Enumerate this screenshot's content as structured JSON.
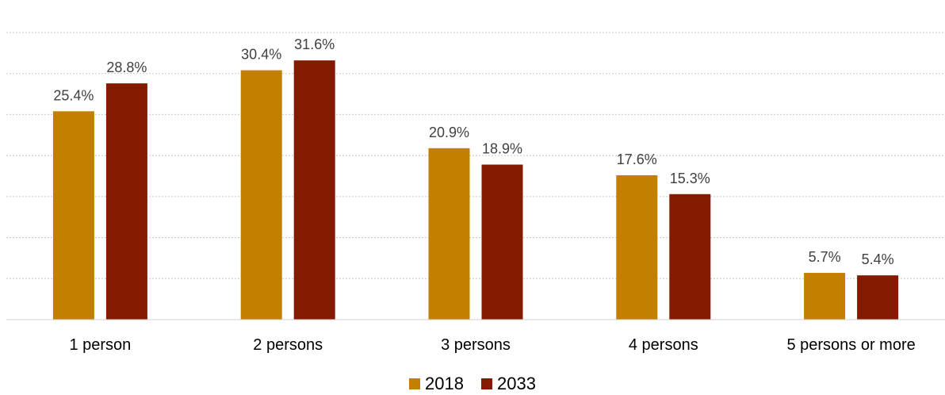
{
  "chart_data": {
    "type": "bar",
    "categories": [
      "1 person",
      "2 persons",
      "3 persons",
      "4 persons",
      "5 persons or more"
    ],
    "series": [
      {
        "name": "2018",
        "values": [
          25.4,
          30.4,
          20.9,
          17.6,
          5.7
        ],
        "color": "#C38000"
      },
      {
        "name": "2033",
        "values": [
          28.8,
          31.6,
          18.9,
          15.3,
          5.4
        ],
        "color": "#841A00"
      }
    ],
    "data_labels": [
      [
        "25.4%",
        "30.4%",
        "20.9%",
        "17.6%",
        "5.7%"
      ],
      [
        "28.8%",
        "31.6%",
        "18.9%",
        "15.3%",
        "5.4%"
      ]
    ],
    "ylim": [
      0,
      35
    ],
    "grid": true,
    "legend": "bottom"
  }
}
